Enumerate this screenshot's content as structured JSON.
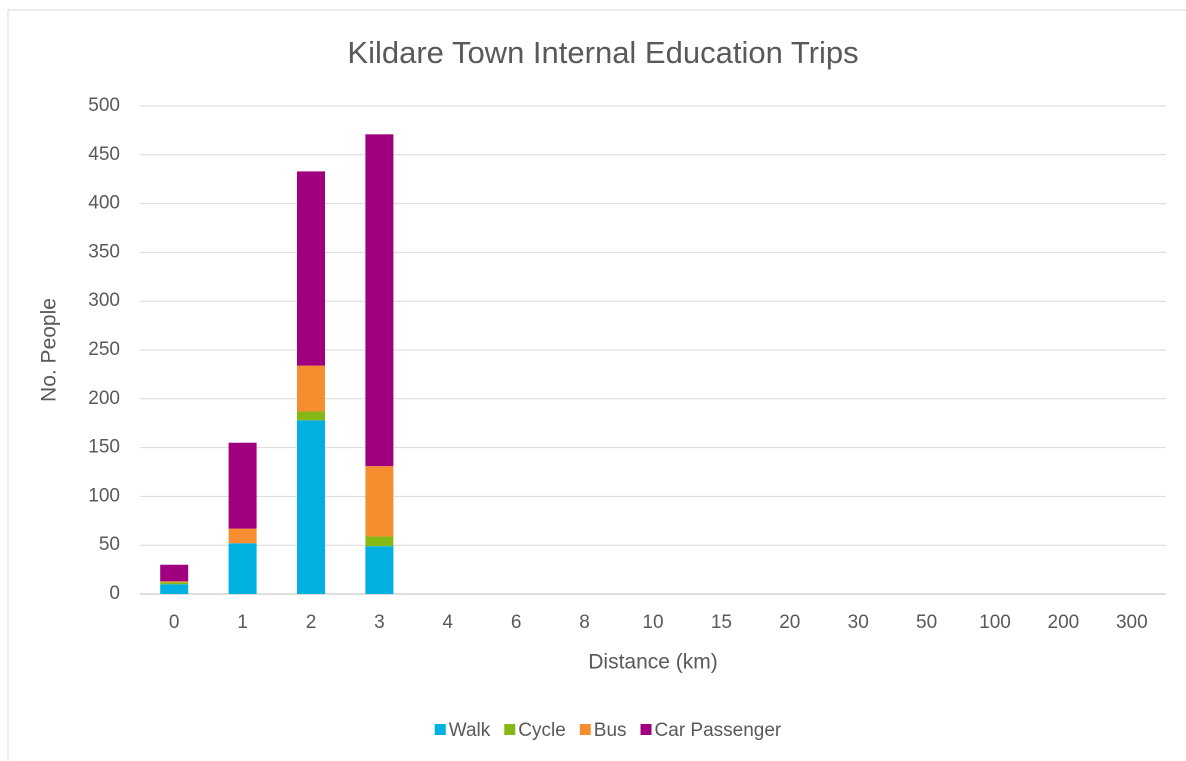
{
  "chart_data": {
    "type": "stacked_bar",
    "title": "Kildare Town Internal Education Trips",
    "x_label": "Distance (km)",
    "y_label": "No. People",
    "categories": [
      "0",
      "1",
      "2",
      "3",
      "4",
      "6",
      "8",
      "10",
      "15",
      "20",
      "30",
      "50",
      "100",
      "200",
      "300"
    ],
    "series": [
      {
        "name": "Walk",
        "color": "#00b0e0",
        "values": [
          10,
          52,
          178,
          49,
          0,
          0,
          0,
          0,
          0,
          0,
          0,
          0,
          0,
          0,
          0
        ]
      },
      {
        "name": "Cycle",
        "color": "#84b817",
        "values": [
          2,
          0,
          9,
          10,
          0,
          0,
          0,
          0,
          0,
          0,
          0,
          0,
          0,
          0,
          0
        ]
      },
      {
        "name": "Bus",
        "color": "#f68d2e",
        "values": [
          1,
          15,
          47,
          72,
          0,
          0,
          0,
          0,
          0,
          0,
          0,
          0,
          0,
          0,
          0
        ]
      },
      {
        "name": "Car Passenger",
        "color": "#a0007d",
        "values": [
          17,
          88,
          199,
          340,
          0,
          0,
          0,
          0,
          0,
          0,
          0,
          0,
          0,
          0,
          0
        ]
      }
    ],
    "ylim": [
      0,
      500
    ],
    "yticks": [
      0,
      50,
      100,
      150,
      200,
      250,
      300,
      350,
      400,
      450,
      500
    ],
    "grid": true,
    "legend": "bottom"
  }
}
